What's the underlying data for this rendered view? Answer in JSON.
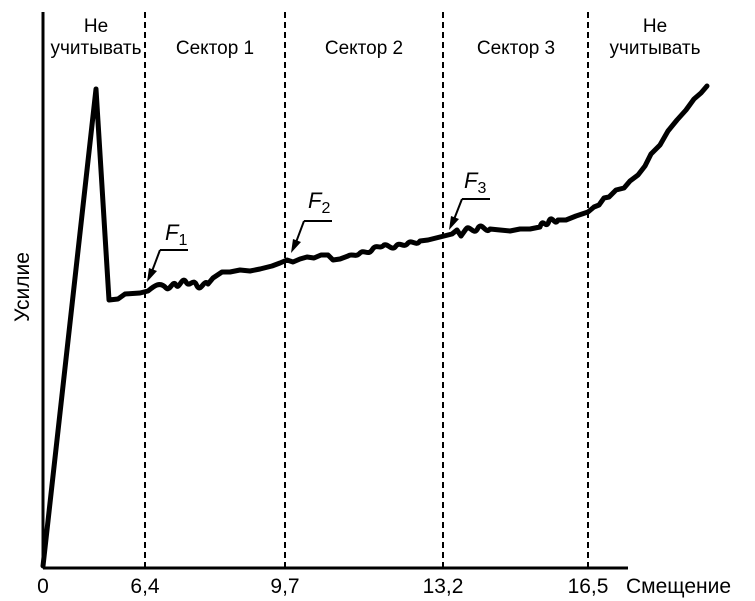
{
  "chart_data": {
    "type": "line",
    "title": "",
    "xlabel": "Смещение",
    "ylabel": "Усилие",
    "x_ticks": [
      "0",
      "6,4",
      "9,7",
      "13,2",
      "16,5"
    ],
    "x_tick_values": [
      0,
      6.4,
      9.7,
      13.2,
      16.5
    ],
    "xlim": [
      0,
      16.5
    ],
    "grid": false,
    "boundaries": [
      6.4,
      9.7,
      13.2,
      16.5
    ],
    "regions": [
      {
        "line1": "Не",
        "line2": "учитывать"
      },
      {
        "line1": "Сектор 1",
        "line2": ""
      },
      {
        "line1": "Сектор 2",
        "line2": ""
      },
      {
        "line1": "Сектор 3",
        "line2": ""
      },
      {
        "line1": "Не",
        "line2": "учитывать"
      }
    ],
    "annotations": [
      {
        "letter": "F",
        "sub": "1",
        "x": 6.4
      },
      {
        "letter": "F",
        "sub": "2",
        "x": 9.7
      },
      {
        "letter": "F",
        "sub": "3",
        "x": 13.2
      }
    ]
  }
}
